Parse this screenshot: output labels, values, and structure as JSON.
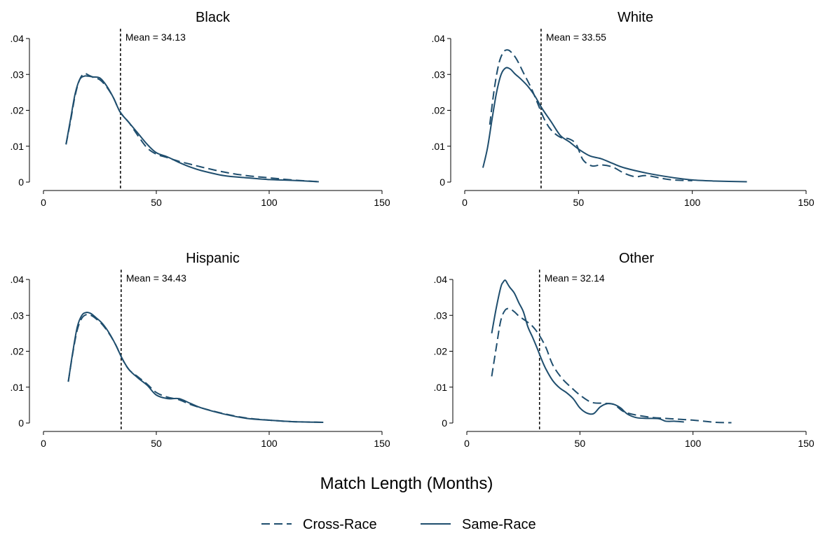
{
  "colors": {
    "series": "#1f4e6e",
    "axis": "#000000",
    "mean_line": "#000000"
  },
  "chart_data": {
    "type": "line",
    "xlabel": "Match Length (Months)",
    "xlim": [
      0,
      150
    ],
    "ylim": [
      0,
      0.04
    ],
    "xticks": [
      0,
      50,
      100,
      150
    ],
    "yticks": [
      0,
      0.01,
      0.02,
      0.03,
      0.04
    ],
    "ytick_labels": [
      "0",
      ".01",
      ".02",
      ".03",
      ".04"
    ],
    "grid": false,
    "legend": {
      "placement": "bottom-center",
      "entries": [
        {
          "name": "Cross-Race",
          "style": "dashed"
        },
        {
          "name": "Same-Race",
          "style": "solid"
        }
      ]
    },
    "panels": [
      {
        "title": "Black",
        "mean": 34.13,
        "mean_label": "Mean = 34.13",
        "series": [
          {
            "name": "Cross-Race",
            "style": "dashed",
            "x": [
              10,
              12,
              14,
              16,
              18,
              20,
              22,
              25,
              28,
              31,
              34,
              38,
              42,
              46,
              50,
              55,
              60,
              65,
              70,
              80,
              90,
              100,
              110,
              122
            ],
            "y": [
              0.0105,
              0.017,
              0.024,
              0.0285,
              0.0302,
              0.0298,
              0.0292,
              0.0285,
              0.0265,
              0.0235,
              0.0195,
              0.0165,
              0.0128,
              0.0095,
              0.0078,
              0.0068,
              0.0058,
              0.005,
              0.0042,
              0.0028,
              0.0018,
              0.0012,
              0.0006,
              0.0001
            ]
          },
          {
            "name": "Same-Race",
            "style": "solid",
            "x": [
              10,
              12,
              14,
              16,
              18,
              20,
              22,
              25,
              28,
              31,
              34,
              38,
              42,
              46,
              50,
              55,
              60,
              65,
              70,
              80,
              90,
              100,
              110,
              122
            ],
            "y": [
              0.0105,
              0.0175,
              0.0245,
              0.0285,
              0.0295,
              0.0295,
              0.0293,
              0.029,
              0.0268,
              0.0235,
              0.0195,
              0.0165,
              0.0135,
              0.0105,
              0.0082,
              0.007,
              0.0055,
              0.0042,
              0.0032,
              0.0018,
              0.0012,
              0.0007,
              0.0005,
              0.0001
            ]
          }
        ]
      },
      {
        "title": "White",
        "mean": 33.55,
        "mean_label": "Mean = 33.55",
        "series": [
          {
            "name": "Cross-Race",
            "style": "dashed",
            "x": [
              11,
              13,
              15,
              17,
              19,
              21,
              23,
              26,
              29,
              32,
              35,
              38,
              42,
              46,
              49,
              52,
              56,
              60,
              65,
              70,
              75,
              80,
              90,
              100
            ],
            "y": [
              0.016,
              0.026,
              0.033,
              0.0362,
              0.0368,
              0.0358,
              0.034,
              0.0302,
              0.0265,
              0.022,
              0.0175,
              0.0145,
              0.0125,
              0.012,
              0.0105,
              0.0062,
              0.0045,
              0.0048,
              0.0042,
              0.0025,
              0.0015,
              0.0018,
              0.0007,
              0.0004
            ]
          },
          {
            "name": "Same-Race",
            "style": "solid",
            "x": [
              8,
              10,
              12,
              14,
              16,
              18,
              20,
              22,
              25,
              28,
              31,
              34,
              38,
              42,
              46,
              50,
              55,
              60,
              65,
              70,
              80,
              90,
              100,
              110,
              124
            ],
            "y": [
              0.004,
              0.0095,
              0.0175,
              0.025,
              0.03,
              0.0318,
              0.0315,
              0.0302,
              0.0285,
              0.0265,
              0.0238,
              0.0205,
              0.0168,
              0.013,
              0.0112,
              0.0092,
              0.0073,
              0.0065,
              0.0052,
              0.004,
              0.0025,
              0.0014,
              0.0006,
              0.0003,
              0.0001
            ]
          }
        ]
      },
      {
        "title": "Hispanic",
        "mean": 34.43,
        "mean_label": "Mean = 34.43",
        "series": [
          {
            "name": "Cross-Race",
            "style": "dashed",
            "x": [
              11,
              13,
              15,
              17,
              19,
              21,
              23,
              26,
              29,
              32,
              35,
              38,
              42,
              46,
              50,
              55,
              60,
              65,
              70,
              80,
              90,
              100,
              110,
              124
            ],
            "y": [
              0.0115,
              0.0195,
              0.026,
              0.0292,
              0.0302,
              0.03,
              0.0292,
              0.0275,
              0.025,
              0.0218,
              0.0178,
              0.0148,
              0.0128,
              0.0108,
              0.0085,
              0.0072,
              0.0065,
              0.0052,
              0.0042,
              0.0026,
              0.0014,
              0.0008,
              0.0004,
              0.0002
            ]
          },
          {
            "name": "Same-Race",
            "style": "solid",
            "x": [
              11,
              13,
              15,
              17,
              19,
              21,
              23,
              26,
              29,
              32,
              35,
              38,
              42,
              46,
              50,
              55,
              60,
              65,
              70,
              80,
              90,
              100,
              110,
              124
            ],
            "y": [
              0.0115,
              0.0198,
              0.0268,
              0.03,
              0.0308,
              0.0305,
              0.0295,
              0.0278,
              0.0252,
              0.0218,
              0.0178,
              0.0148,
              0.0125,
              0.0105,
              0.0078,
              0.0068,
              0.0068,
              0.0055,
              0.0042,
              0.0025,
              0.0013,
              0.0008,
              0.0004,
              0.0002
            ]
          }
        ]
      },
      {
        "title": "Other",
        "mean": 32.14,
        "mean_label": "Mean = 32.14",
        "series": [
          {
            "name": "Cross-Race",
            "style": "dashed",
            "x": [
              11,
              13,
              15,
              17,
              19,
              21,
              23,
              26,
              29,
              32,
              35,
              38,
              42,
              46,
              50,
              55,
              60,
              65,
              70,
              80,
              90,
              100,
              110,
              117
            ],
            "y": [
              0.013,
              0.021,
              0.0285,
              0.0315,
              0.0318,
              0.031,
              0.0298,
              0.0285,
              0.027,
              0.0245,
              0.021,
              0.0162,
              0.0125,
              0.01,
              0.0078,
              0.0058,
              0.0055,
              0.0052,
              0.003,
              0.0017,
              0.0012,
              0.0008,
              0.0002,
              0.0001
            ]
          },
          {
            "name": "Same-Race",
            "style": "solid",
            "x": [
              11,
              13,
              15,
              16,
              17,
              18,
              19,
              21,
              23,
              25,
              27,
              29,
              31,
              33,
              35,
              38,
              41,
              44,
              47,
              50,
              53,
              56,
              59,
              62,
              65,
              68,
              71,
              75,
              80,
              85,
              88,
              92,
              96
            ],
            "y": [
              0.025,
              0.032,
              0.0378,
              0.0392,
              0.0398,
              0.0388,
              0.0378,
              0.0362,
              0.0335,
              0.031,
              0.0268,
              0.024,
              0.021,
              0.0178,
              0.015,
              0.0118,
              0.0098,
              0.0085,
              0.0068,
              0.0042,
              0.0028,
              0.0026,
              0.0045,
              0.0054,
              0.0052,
              0.0042,
              0.0025,
              0.0015,
              0.0013,
              0.0012,
              0.0005,
              0.0005,
              0.0003
            ]
          }
        ]
      }
    ]
  }
}
